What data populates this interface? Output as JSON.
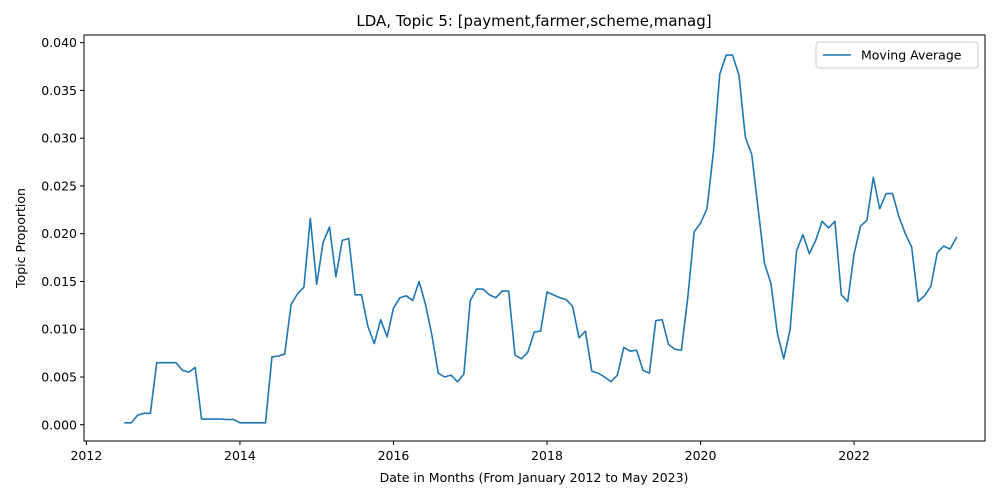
{
  "chart_data": {
    "type": "line",
    "title": "LDA, Topic 5: [payment,farmer,scheme,manag]",
    "xlabel": "Date in Months (From January 2012 to May 2023)",
    "ylabel": "Topic Proportion",
    "xlim": [
      "2011-12-20",
      "2023-09-15"
    ],
    "ylim": [
      -0.0017,
      0.0408
    ],
    "x_ticks": [
      "2012",
      "2014",
      "2016",
      "2018",
      "2020",
      "2022"
    ],
    "y_ticks": [
      "0.000",
      "0.005",
      "0.010",
      "0.015",
      "0.020",
      "0.025",
      "0.030",
      "0.035",
      "0.040"
    ],
    "legend": {
      "position": "upper right",
      "entries": [
        "Moving Average"
      ]
    },
    "colors": {
      "line": "#1f77b4",
      "axes": "#000000",
      "legend_border": "#cccccc"
    },
    "grid": false,
    "series": [
      {
        "name": "Moving Average",
        "x": [
          "2012-07",
          "2012-08",
          "2012-09",
          "2012-10",
          "2012-11",
          "2012-12",
          "2013-01",
          "2013-02",
          "2013-03",
          "2013-04",
          "2013-05",
          "2013-06",
          "2013-07",
          "2013-08",
          "2013-09",
          "2013-10",
          "2013-11",
          "2013-12",
          "2014-01",
          "2014-02",
          "2014-03",
          "2014-04",
          "2014-05",
          "2014-06",
          "2014-07",
          "2014-08",
          "2014-09",
          "2014-10",
          "2014-11",
          "2014-12",
          "2015-01",
          "2015-02",
          "2015-03",
          "2015-04",
          "2015-05",
          "2015-06",
          "2015-07",
          "2015-08",
          "2015-09",
          "2015-10",
          "2015-11",
          "2015-12",
          "2016-01",
          "2016-02",
          "2016-03",
          "2016-04",
          "2016-05",
          "2016-06",
          "2016-07",
          "2016-08",
          "2016-09",
          "2016-10",
          "2016-11",
          "2016-12",
          "2017-01",
          "2017-02",
          "2017-03",
          "2017-04",
          "2017-05",
          "2017-06",
          "2017-07",
          "2017-08",
          "2017-09",
          "2017-10",
          "2017-11",
          "2017-12",
          "2018-01",
          "2018-02",
          "2018-03",
          "2018-04",
          "2018-05",
          "2018-06",
          "2018-07",
          "2018-08",
          "2018-09",
          "2018-10",
          "2018-11",
          "2018-12",
          "2019-01",
          "2019-02",
          "2019-03",
          "2019-04",
          "2019-05",
          "2019-06",
          "2019-07",
          "2019-08",
          "2019-09",
          "2019-10",
          "2019-11",
          "2019-12",
          "2020-01",
          "2020-02",
          "2020-03",
          "2020-04",
          "2020-05",
          "2020-06",
          "2020-07",
          "2020-08",
          "2020-09",
          "2020-10",
          "2020-11",
          "2020-12",
          "2021-01",
          "2021-02",
          "2021-03",
          "2021-04",
          "2021-05",
          "2021-06",
          "2021-07",
          "2021-08",
          "2021-09",
          "2021-10",
          "2021-11",
          "2021-12",
          "2022-01",
          "2022-02",
          "2022-03",
          "2022-04",
          "2022-05",
          "2022-06",
          "2022-07",
          "2022-08",
          "2022-09",
          "2022-10",
          "2022-11",
          "2022-12",
          "2023-01",
          "2023-02",
          "2023-03",
          "2023-04",
          "2023-05"
        ],
        "y": [
          0.0002,
          0.0002,
          0.001,
          0.0012,
          0.0012,
          0.0065,
          0.0065,
          0.0065,
          0.0065,
          0.0057,
          0.0055,
          0.006,
          0.0006,
          0.0006,
          0.0006,
          0.0006,
          0.00055,
          0.00055,
          0.0002,
          0.0002,
          0.0002,
          0.0002,
          0.0002,
          0.0071,
          0.0072,
          0.0074,
          0.0126,
          0.0137,
          0.0144,
          0.0216,
          0.0147,
          0.0191,
          0.0207,
          0.0155,
          0.0193,
          0.0195,
          0.0136,
          0.0136,
          0.0103,
          0.0085,
          0.011,
          0.0092,
          0.0122,
          0.0133,
          0.0135,
          0.013,
          0.015,
          0.0126,
          0.0094,
          0.0054,
          0.005,
          0.0052,
          0.0045,
          0.0053,
          0.013,
          0.0142,
          0.0142,
          0.0136,
          0.0133,
          0.014,
          0.014,
          0.0073,
          0.0069,
          0.0076,
          0.0097,
          0.0098,
          0.0139,
          0.0136,
          0.0133,
          0.0131,
          0.0124,
          0.0091,
          0.0098,
          0.0056,
          0.0054,
          0.005,
          0.0045,
          0.0052,
          0.0081,
          0.0077,
          0.0078,
          0.0057,
          0.0054,
          0.0109,
          0.011,
          0.0084,
          0.0079,
          0.0078,
          0.0133,
          0.0202,
          0.0211,
          0.0226,
          0.0285,
          0.0367,
          0.0387,
          0.0387,
          0.0366,
          0.0301,
          0.0283,
          0.0226,
          0.0169,
          0.0148,
          0.0096,
          0.0069,
          0.01,
          0.0182,
          0.0199,
          0.0179,
          0.0193,
          0.0213,
          0.0206,
          0.0213,
          0.0136,
          0.0129,
          0.0179,
          0.0208,
          0.0214,
          0.0259,
          0.0226,
          0.0242,
          0.0242,
          0.0218,
          0.02,
          0.0186,
          0.0129,
          0.0135,
          0.0145,
          0.018,
          0.0187,
          0.0184,
          0.0196
        ]
      }
    ]
  }
}
